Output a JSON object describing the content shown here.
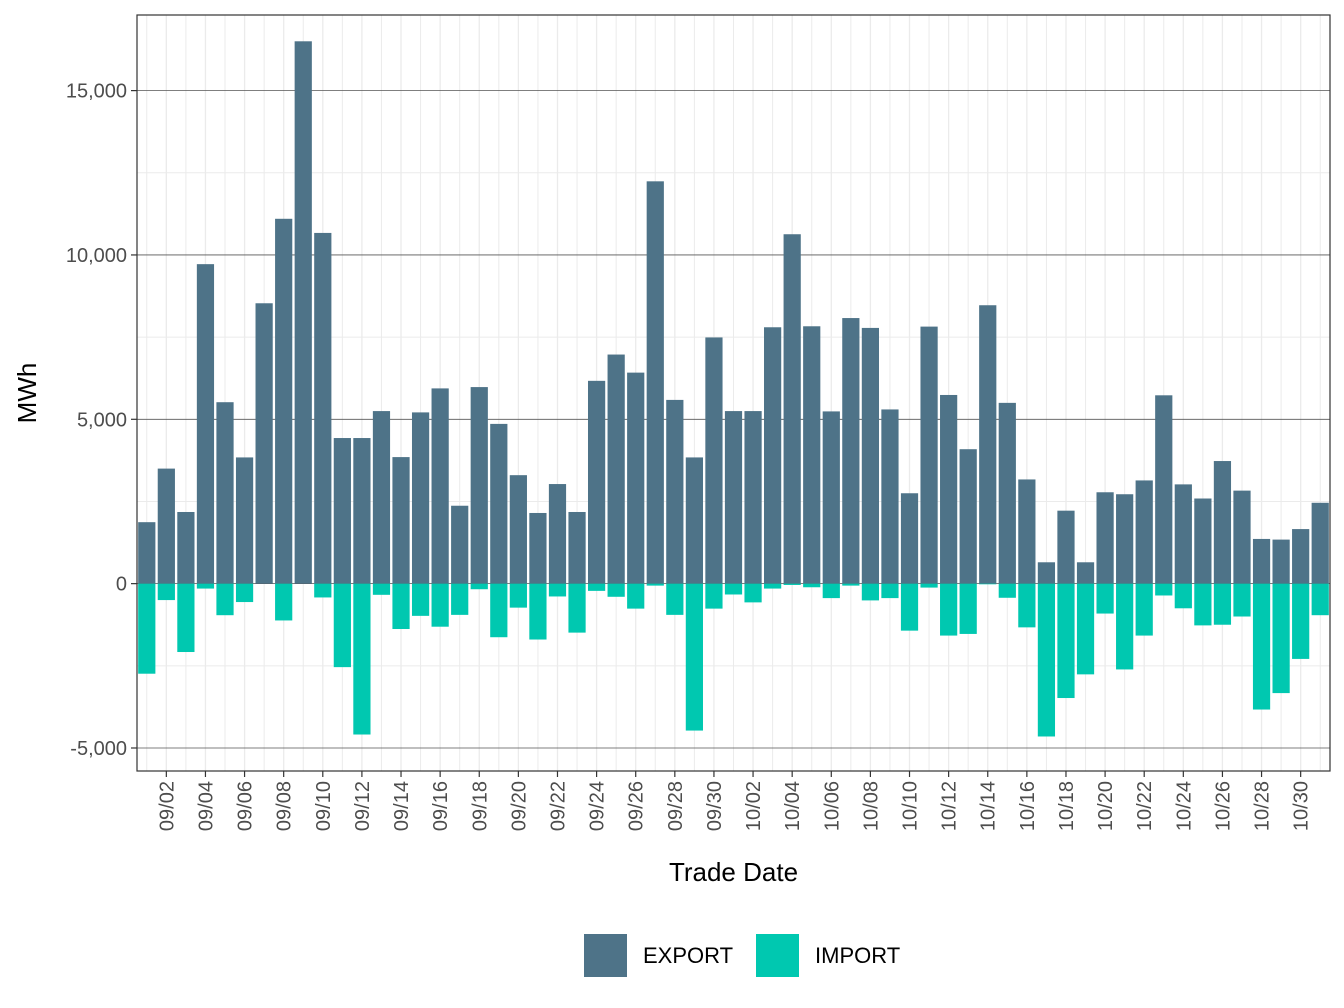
{
  "chart_data": {
    "type": "bar",
    "xlabel": "Trade Date",
    "ylabel": "MWh",
    "ylim": [
      -5700,
      17300
    ],
    "y_ticks": [
      -5000,
      0,
      5000,
      10000,
      15000
    ],
    "y_tick_labels": [
      "-5,000",
      "0",
      "5,000",
      "10,000",
      "15,000"
    ],
    "x_tick_labels": [
      "09/02",
      "09/04",
      "09/06",
      "09/08",
      "09/10",
      "09/12",
      "09/14",
      "09/16",
      "09/18",
      "09/20",
      "09/22",
      "09/24",
      "09/26",
      "09/28",
      "09/30",
      "10/02",
      "10/04",
      "10/06",
      "10/08",
      "10/10",
      "10/12",
      "10/14",
      "10/16",
      "10/18",
      "10/20",
      "10/22",
      "10/24",
      "10/26",
      "10/28",
      "10/30"
    ],
    "categories": [
      "09/01",
      "09/02",
      "09/03",
      "09/04",
      "09/05",
      "09/06",
      "09/07",
      "09/08",
      "09/09",
      "09/10",
      "09/11",
      "09/12",
      "09/13",
      "09/14",
      "09/15",
      "09/16",
      "09/17",
      "09/18",
      "09/19",
      "09/20",
      "09/21",
      "09/22",
      "09/23",
      "09/24",
      "09/25",
      "09/26",
      "09/27",
      "09/28",
      "09/29",
      "09/30",
      "10/01",
      "10/02",
      "10/03",
      "10/04",
      "10/05",
      "10/06",
      "10/07",
      "10/08",
      "10/09",
      "10/10",
      "10/11",
      "10/12",
      "10/13",
      "10/14",
      "10/15",
      "10/16",
      "10/17",
      "10/18",
      "10/19",
      "10/20",
      "10/21",
      "10/22",
      "10/23",
      "10/24",
      "10/25",
      "10/26",
      "10/27",
      "10/28",
      "10/29",
      "10/30",
      "10/31"
    ],
    "series": [
      {
        "name": "EXPORT",
        "color": "#4e7388",
        "values": [
          1870,
          3500,
          2180,
          9720,
          5520,
          3840,
          8530,
          11100,
          16500,
          10670,
          4430,
          4430,
          5250,
          3850,
          5210,
          5940,
          2370,
          5980,
          4860,
          3300,
          2150,
          3030,
          2180,
          6170,
          6970,
          6420,
          12240,
          5590,
          3840,
          7490,
          5250,
          5250,
          7800,
          10630,
          7830,
          5240,
          8080,
          7780,
          5300,
          2750,
          7820,
          5740,
          4090,
          8470,
          5500,
          3170,
          650,
          2220,
          650,
          2780,
          2720,
          3140,
          5730,
          3020,
          2590,
          3730,
          2830,
          1360,
          1340,
          1660,
          2460
        ]
      },
      {
        "name": "IMPORT",
        "color": "#00c8b0",
        "values": [
          -2740,
          -500,
          -2080,
          -150,
          -960,
          -560,
          0,
          -1120,
          0,
          -420,
          -2540,
          -4590,
          -340,
          -1380,
          -980,
          -1310,
          -950,
          -170,
          -1630,
          -730,
          -1700,
          -390,
          -1490,
          -220,
          -400,
          -760,
          -60,
          -950,
          -4470,
          -760,
          -330,
          -570,
          -150,
          -40,
          -110,
          -440,
          -60,
          -510,
          -440,
          -1430,
          -120,
          -1580,
          -1530,
          -20,
          -430,
          -1330,
          -4650,
          -3480,
          -2760,
          -910,
          -2610,
          -1580,
          -360,
          -750,
          -1270,
          -1250,
          -1000,
          -3830,
          -3330,
          -2290,
          -960
        ]
      }
    ],
    "grid": true,
    "legend_position": "bottom"
  }
}
